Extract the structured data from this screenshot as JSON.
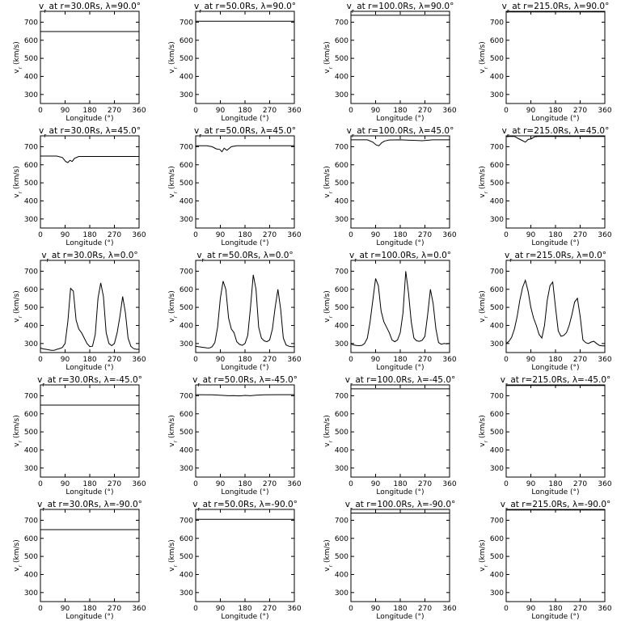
{
  "figure": {
    "xlabel": "Longitude (°)",
    "ylabel": "v_r (km/s)",
    "xlim": [
      0,
      360
    ],
    "ylim": [
      250,
      760
    ],
    "xticks": [
      0,
      90,
      180,
      270,
      360
    ],
    "yticks": [
      300,
      400,
      500,
      600,
      700
    ],
    "line_color": "#000000",
    "background": "#ffffff"
  },
  "chart_data": [
    {
      "type": "line",
      "title": "v_r at r=30.0Rs, λ=90.0°",
      "radius": "30.0",
      "latitude": "90.0",
      "x": [
        0,
        360
      ],
      "y": [
        648,
        648
      ]
    },
    {
      "type": "line",
      "title": "v_r at r=50.0Rs, λ=90.0°",
      "radius": "50.0",
      "latitude": "90.0",
      "x": [
        0,
        360
      ],
      "y": [
        705,
        705
      ]
    },
    {
      "type": "line",
      "title": "v_r at r=100.0Rs, λ=90.0°",
      "radius": "100.0",
      "latitude": "90.0",
      "x": [
        0,
        360
      ],
      "y": [
        738,
        738
      ]
    },
    {
      "type": "line",
      "title": "v_r at r=215.0Rs, λ=90.0°",
      "radius": "215.0",
      "latitude": "90.0",
      "x": [
        0,
        360
      ],
      "y": [
        757,
        757
      ]
    },
    {
      "type": "line",
      "title": "v_r at r=30.0Rs, λ=45.0°",
      "radius": "30.0",
      "latitude": "45.0",
      "x": [
        0,
        60,
        80,
        92,
        100,
        108,
        116,
        124,
        140,
        360
      ],
      "y": [
        648,
        648,
        640,
        618,
        612,
        625,
        618,
        635,
        646,
        646
      ]
    },
    {
      "type": "line",
      "title": "v_r at r=50.0Rs, λ=45.0°",
      "radius": "50.0",
      "latitude": "45.0",
      "x": [
        0,
        40,
        60,
        75,
        88,
        96,
        104,
        114,
        130,
        150,
        360
      ],
      "y": [
        705,
        705,
        700,
        688,
        685,
        672,
        692,
        680,
        700,
        705,
        705
      ]
    },
    {
      "type": "line",
      "title": "v_r at r=100.0Rs, λ=45.0°",
      "radius": "100.0",
      "latitude": "45.0",
      "x": [
        0,
        60,
        80,
        92,
        102,
        112,
        124,
        140,
        180,
        260,
        300,
        360
      ],
      "y": [
        738,
        738,
        725,
        710,
        705,
        722,
        732,
        737,
        738,
        733,
        738,
        738
      ]
    },
    {
      "type": "line",
      "title": "v_r at r=215.0Rs, λ=45.0°",
      "radius": "215.0",
      "latitude": "45.0",
      "x": [
        0,
        30,
        48,
        60,
        70,
        80,
        92,
        104,
        116,
        360
      ],
      "y": [
        757,
        757,
        742,
        733,
        725,
        740,
        744,
        755,
        757,
        757
      ]
    },
    {
      "type": "line",
      "title": "v_r at r=30.0Rs, λ=0.0°",
      "radius": "30.0",
      "latitude": "0.0",
      "x": [
        0,
        10,
        20,
        30,
        40,
        50,
        60,
        70,
        80,
        90,
        100,
        110,
        120,
        130,
        140,
        150,
        160,
        170,
        180,
        190,
        200,
        210,
        220,
        230,
        240,
        250,
        260,
        270,
        280,
        290,
        300,
        310,
        320,
        330,
        340,
        350,
        360
      ],
      "y": [
        275,
        270,
        268,
        265,
        262,
        262,
        268,
        272,
        278,
        300,
        420,
        605,
        590,
        430,
        380,
        360,
        330,
        300,
        283,
        285,
        350,
        550,
        635,
        560,
        360,
        300,
        288,
        300,
        360,
        450,
        560,
        470,
        330,
        285,
        272,
        268,
        268
      ]
    },
    {
      "type": "line",
      "title": "v_r at r=50.0Rs, λ=0.0°",
      "radius": "50.0",
      "latitude": "0.0",
      "x": [
        0,
        10,
        20,
        30,
        40,
        50,
        60,
        70,
        80,
        90,
        100,
        110,
        120,
        130,
        140,
        150,
        160,
        170,
        180,
        190,
        200,
        210,
        220,
        230,
        240,
        250,
        260,
        270,
        280,
        290,
        300,
        310,
        320,
        330,
        340,
        350,
        360
      ],
      "y": [
        285,
        282,
        280,
        278,
        276,
        275,
        282,
        305,
        390,
        550,
        645,
        600,
        440,
        380,
        360,
        310,
        295,
        290,
        300,
        345,
        500,
        680,
        600,
        390,
        330,
        315,
        310,
        320,
        380,
        500,
        600,
        490,
        330,
        292,
        285,
        282,
        282
      ]
    },
    {
      "type": "line",
      "title": "v_r at r=100.0Rs, λ=0.0°",
      "radius": "100.0",
      "latitude": "0.0",
      "x": [
        0,
        10,
        20,
        30,
        40,
        50,
        60,
        70,
        80,
        90,
        100,
        110,
        120,
        130,
        140,
        150,
        160,
        170,
        180,
        190,
        200,
        210,
        220,
        230,
        240,
        250,
        260,
        270,
        280,
        290,
        300,
        310,
        320,
        330,
        340,
        350,
        360
      ],
      "y": [
        298,
        292,
        289,
        288,
        290,
        300,
        330,
        420,
        540,
        660,
        620,
        480,
        420,
        390,
        360,
        320,
        310,
        320,
        360,
        470,
        700,
        580,
        420,
        330,
        315,
        312,
        318,
        340,
        460,
        600,
        520,
        380,
        305,
        296,
        300,
        298,
        300
      ]
    },
    {
      "type": "line",
      "title": "v_r at r=215.0Rs, λ=0.0°",
      "radius": "215.0",
      "latitude": "0.0",
      "x": [
        0,
        10,
        20,
        30,
        40,
        50,
        60,
        70,
        80,
        90,
        100,
        110,
        120,
        130,
        140,
        150,
        160,
        170,
        180,
        190,
        200,
        210,
        220,
        230,
        240,
        250,
        260,
        270,
        280,
        290,
        300,
        310,
        320,
        330,
        340,
        350,
        360
      ],
      "y": [
        300,
        312,
        335,
        380,
        450,
        540,
        610,
        650,
        590,
        500,
        440,
        400,
        350,
        330,
        400,
        540,
        620,
        640,
        500,
        370,
        340,
        345,
        360,
        400,
        460,
        530,
        550,
        450,
        320,
        305,
        300,
        308,
        312,
        300,
        290,
        287,
        287
      ]
    },
    {
      "type": "line",
      "title": "v_r at r=30.0Rs, λ=-45.0°",
      "radius": "30.0",
      "latitude": "-45.0",
      "x": [
        0,
        360
      ],
      "y": [
        648,
        648
      ]
    },
    {
      "type": "line",
      "title": "v_r at r=50.0Rs, λ=-45.0°",
      "radius": "50.0",
      "latitude": "-45.0",
      "x": [
        0,
        60,
        100,
        120,
        140,
        160,
        180,
        200,
        220,
        250,
        300,
        360
      ],
      "y": [
        706,
        705,
        702,
        700,
        701,
        699,
        702,
        700,
        703,
        705,
        706,
        706
      ]
    },
    {
      "type": "line",
      "title": "v_r at r=100.0Rs, λ=-45.0°",
      "radius": "100.0",
      "latitude": "-45.0",
      "x": [
        0,
        360
      ],
      "y": [
        738,
        738
      ]
    },
    {
      "type": "line",
      "title": "v_r at r=215.0Rs, λ=-45.0°",
      "radius": "215.0",
      "latitude": "-45.0",
      "x": [
        0,
        360
      ],
      "y": [
        757,
        757
      ]
    },
    {
      "type": "line",
      "title": "v_r at r=30.0Rs, λ=-90.0°",
      "radius": "30.0",
      "latitude": "-90.0",
      "x": [
        0,
        360
      ],
      "y": [
        648,
        648
      ]
    },
    {
      "type": "line",
      "title": "v_r at r=50.0Rs, λ=-90.0°",
      "radius": "50.0",
      "latitude": "-90.0",
      "x": [
        0,
        360
      ],
      "y": [
        705,
        705
      ]
    },
    {
      "type": "line",
      "title": "v_r at r=100.0Rs, λ=-90.0°",
      "radius": "100.0",
      "latitude": "-90.0",
      "x": [
        0,
        360
      ],
      "y": [
        740,
        740
      ]
    },
    {
      "type": "line",
      "title": "v_r at r=215.0Rs, λ=-90.0°",
      "radius": "215.0",
      "latitude": "-90.0",
      "x": [
        0,
        360
      ],
      "y": [
        757,
        757
      ]
    }
  ]
}
